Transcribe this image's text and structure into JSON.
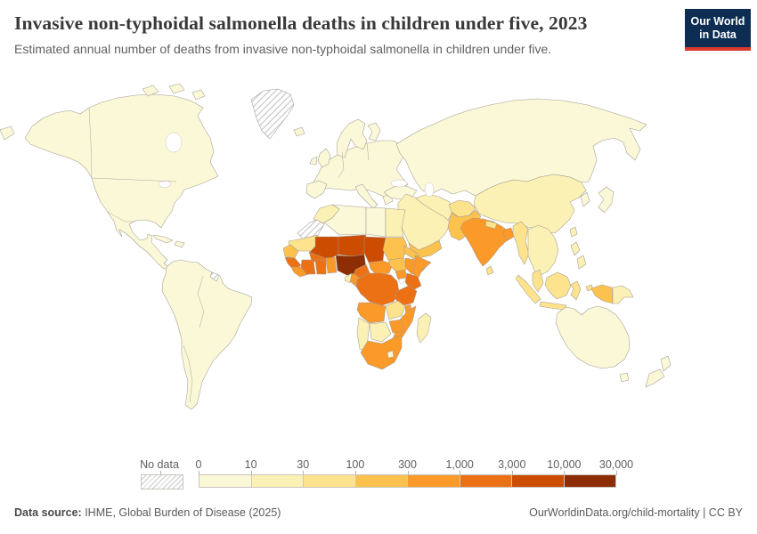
{
  "header": {
    "title": "Invasive non-typhoidal salmonella deaths in children under five, 2023",
    "subtitle": "Estimated annual number of deaths from invasive non-typhoidal salmonella in children under five.",
    "logo": {
      "line1": "Our World",
      "line2": "in Data",
      "bg_color": "#0d2e52",
      "accent_color": "#d93a2b"
    }
  },
  "legend": {
    "no_data_label": "No data",
    "tick_labels": [
      "0",
      "10",
      "30",
      "100",
      "300",
      "1,000",
      "3,000",
      "10,000",
      "30,000"
    ],
    "bin_colors": [
      "#FBF8D8",
      "#FCF1B4",
      "#FDE38D",
      "#FDC24E",
      "#FB9929",
      "#EC7014",
      "#CC4C02",
      "#8C2D04"
    ]
  },
  "footer": {
    "source_label": "Data source:",
    "source_text": " IHME, Global Burden of Disease (2025)",
    "credit_link": "OurWorldinData.org/child-mortality",
    "credit_separator": " | ",
    "credit_license": "CC BY"
  },
  "chart_data": {
    "type": "heatmap",
    "variant": "world-choropleth",
    "title": "Invasive non-typhoidal salmonella deaths in children under five, 2023",
    "unit": "deaths per year",
    "year": "2023",
    "scale": "log-binned",
    "legend_position": "bottom",
    "bins": [
      {
        "range": "0–10",
        "color": "#FBF8D8"
      },
      {
        "range": "10–30",
        "color": "#FCF1B4"
      },
      {
        "range": "30–100",
        "color": "#FDE38D"
      },
      {
        "range": "100–300",
        "color": "#FDC24E"
      },
      {
        "range": "300–1,000",
        "color": "#FB9929"
      },
      {
        "range": "1,000–3,000",
        "color": "#EC7014"
      },
      {
        "range": "3,000–10,000",
        "color": "#CC4C02"
      },
      {
        "range": "10,000–30,000",
        "color": "#8C2D04"
      }
    ],
    "no_data_regions": [
      "Greenland",
      "Western Sahara",
      "French Guiana"
    ],
    "regions": {
      "north_america": 0,
      "arctic_islands": 0,
      "greenland": "no_data",
      "iceland": 0,
      "cuba": 0,
      "hispaniola": 0,
      "russia_wrap": 0,
      "south_america": 0,
      "french_guiana": "no_data",
      "europe": 0,
      "iberia": 0,
      "italy": 0,
      "greece": 0,
      "uk": 0,
      "ireland": 0,
      "scandinavia": 0,
      "finland": 0,
      "russia_central_asia": 0,
      "china": 1,
      "korea": 0,
      "japan": 0,
      "taiwan": 1,
      "turkey": 0,
      "iran": 1,
      "arabia": 1,
      "yemen": 3,
      "afghanistan": 2,
      "pakistan": 3,
      "india": 4,
      "nepal": 2,
      "sri_lanka": 2,
      "bangladesh": 4,
      "myanmar": 2,
      "indochina": 1,
      "malay_peninsula": 2,
      "philippines": 1,
      "indonesia": 2,
      "papua_indonesia": 3,
      "papua_new_guinea": 1,
      "australia": 0,
      "tasmania": 0,
      "new_zealand": 0,
      "morocco": 1,
      "western_sahara": "no_data",
      "algeria": 0,
      "libya": 0,
      "egypt": 1,
      "mauritania": 2,
      "mali": 6,
      "niger": 6,
      "chad": 6,
      "sudan": 3,
      "senegal": 3,
      "guinea": 5,
      "liberia": 4,
      "cote_divoire": 5,
      "ghana": 5,
      "togo_benin": 4,
      "burkina_faso": 5,
      "nigeria": 7,
      "cameroon": 5,
      "central_african_republic": 4,
      "south_sudan": 3,
      "eritrea": 3,
      "ethiopia": 4,
      "somalia": 4,
      "uganda": 4,
      "kenya": 5,
      "drc": 5,
      "congo": 4,
      "gabon": 1,
      "tanzania": 5,
      "angola": 4,
      "zambia": 2,
      "malawi": 4,
      "mozambique": 4,
      "zimbabwe": 4,
      "namibia": 1,
      "botswana": 1,
      "south_africa": 4,
      "lesotho": 0,
      "madagascar": 1
    }
  }
}
